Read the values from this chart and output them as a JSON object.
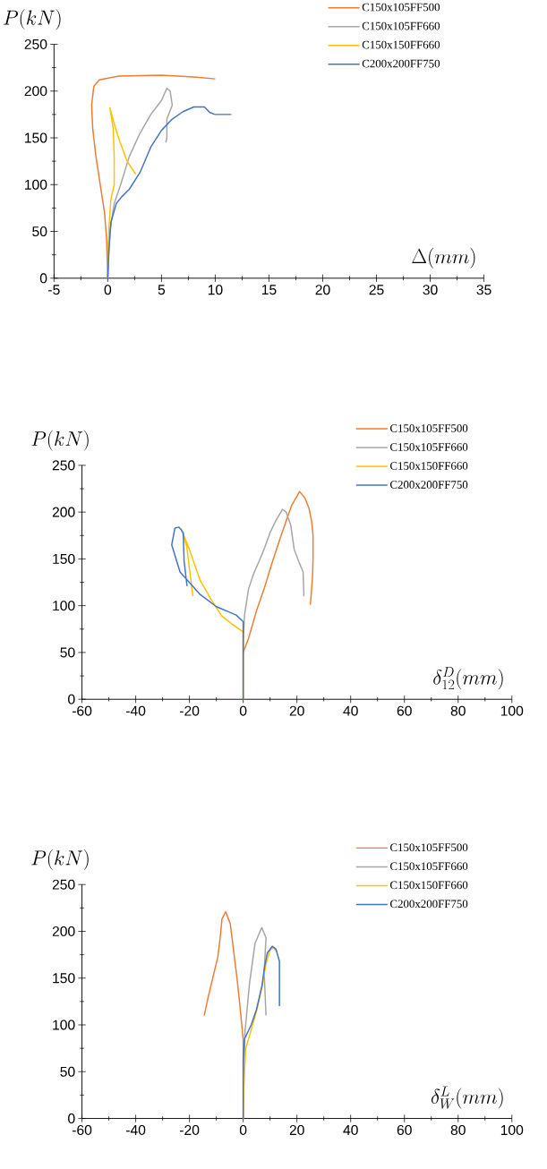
{
  "chart_data": [
    {
      "type": "line",
      "ylabel": "P(kN)",
      "xlabel": "\\Delta(mm)",
      "legend": "top right",
      "xlim": [
        -5,
        35
      ],
      "ylim": [
        0,
        250
      ],
      "xticks": [
        -5,
        0,
        5,
        10,
        15,
        20,
        25,
        30,
        35
      ],
      "yticks": [
        0,
        50,
        100,
        150,
        200,
        250
      ],
      "series": [
        {
          "name": "C150x105FF500",
          "color": "#ed7d31",
          "x": [
            0,
            -0.1,
            -0.3,
            -0.7,
            -1.1,
            -1.4,
            -1.5,
            -1.3,
            -0.8,
            1,
            5,
            8,
            10
          ],
          "values": [
            0,
            40,
            70,
            100,
            130,
            160,
            185,
            205,
            212,
            216,
            217,
            215,
            213
          ]
        },
        {
          "name": "C150x105FF660",
          "color": "#a5a5a5",
          "x": [
            0,
            0.2,
            0.6,
            1.2,
            2,
            3,
            4,
            5,
            5.5,
            5.8,
            6,
            5.5,
            5.5,
            5.4
          ],
          "values": [
            0,
            50,
            80,
            100,
            130,
            155,
            175,
            190,
            203,
            200,
            185,
            170,
            150,
            145
          ]
        },
        {
          "name": "C150x150FF660",
          "color": "#ffc000",
          "x": [
            0,
            0.05,
            0.2,
            0.3,
            0.6,
            0.6,
            0.5,
            0.3,
            0.2,
            0.6,
            1,
            1.8,
            2.6
          ],
          "values": [
            0,
            40,
            70,
            85,
            100,
            130,
            160,
            175,
            182,
            165,
            150,
            125,
            111
          ]
        },
        {
          "name": "C200x200FF750",
          "color": "#4472c4",
          "x": [
            0,
            0.1,
            0.3,
            0.8,
            1.3,
            2,
            3,
            4,
            5,
            6,
            7,
            8,
            9,
            9.5,
            10,
            11.5
          ],
          "values": [
            0,
            30,
            60,
            80,
            87,
            95,
            113,
            140,
            158,
            170,
            178,
            183,
            183,
            177,
            175,
            175
          ]
        }
      ]
    },
    {
      "type": "line",
      "ylabel": "P(kN)",
      "xlabel": "\\delta^{D}_{12}(mm)",
      "legend": "top right",
      "xlim": [
        -60,
        100
      ],
      "ylim": [
        0,
        250
      ],
      "xticks": [
        -60,
        -40,
        -20,
        0,
        20,
        40,
        60,
        80,
        100
      ],
      "yticks": [
        0,
        50,
        100,
        150,
        200,
        250
      ],
      "series": [
        {
          "name": "C150x105FF500",
          "color": "#ed7d31",
          "x": [
            0,
            2,
            5,
            8,
            11,
            14,
            18,
            21,
            23,
            24.5,
            25.5,
            26,
            26,
            25.8,
            25
          ],
          "values": [
            50,
            65,
            95,
            120,
            148,
            174,
            207,
            222,
            215,
            204,
            190,
            175,
            150,
            130,
            101
          ]
        },
        {
          "name": "C150x105FF660",
          "color": "#a5a5a5",
          "x": [
            0,
            0,
            0.5,
            2,
            4,
            6,
            8,
            10,
            12,
            14.6,
            16,
            17.7,
            19,
            21,
            22.3,
            22.6
          ],
          "values": [
            0,
            60,
            90,
            118,
            135,
            148,
            162,
            178,
            190,
            203,
            200,
            186,
            160,
            145,
            136,
            110
          ]
        },
        {
          "name": "C150x150FF660",
          "color": "#ffc000",
          "x": [
            0,
            0,
            -4,
            -8,
            -12,
            -16,
            -20,
            -23,
            -21,
            -18.7
          ],
          "values": [
            0,
            72,
            80,
            89,
            107,
            127,
            160,
            182,
            163,
            110
          ]
        },
        {
          "name": "C200x200FF750",
          "color": "#4472c4",
          "x": [
            0,
            0,
            -2.6,
            -10,
            -16,
            -23.5,
            -26.6,
            -25.4,
            -23.9,
            -22.3,
            -22,
            -20.9
          ],
          "values": [
            0,
            83,
            90,
            99,
            112,
            136,
            165,
            183,
            184,
            178,
            148,
            121
          ]
        }
      ]
    },
    {
      "type": "line",
      "ylabel": "P(kN)",
      "xlabel": "\\delta^{L}_{W}(mm)",
      "legend": "top right",
      "xlim": [
        -60,
        100
      ],
      "ylim": [
        0,
        250
      ],
      "xticks": [
        -60,
        -40,
        -20,
        0,
        20,
        40,
        60,
        80,
        100
      ],
      "yticks": [
        0,
        50,
        100,
        150,
        200,
        250
      ],
      "series": [
        {
          "name": "C150x105FF500",
          "color": "#ed7d31",
          "x": [
            0,
            0,
            -1.2,
            -2.3,
            -3.3,
            -4.8,
            -6.5,
            -7.9,
            -8.5,
            -9.4,
            -11.4,
            -13,
            -14.5
          ],
          "values": [
            60,
            84,
            120,
            150,
            173,
            208,
            221,
            213,
            195,
            173,
            149,
            130,
            110
          ]
        },
        {
          "name": "C150x105FF660",
          "color": "#a5a5a5",
          "x": [
            0,
            0.6,
            2.3,
            4.4,
            6.9,
            8.5,
            7.8,
            8.5
          ],
          "values": [
            0,
            90,
            143,
            187,
            204,
            193,
            157,
            110
          ]
        },
        {
          "name": "C150x150FF660",
          "color": "#ffc000",
          "x": [
            0,
            0.3,
            1,
            3,
            5,
            7,
            8.5,
            10,
            11.3,
            12.5
          ],
          "values": [
            0,
            40,
            75,
            95,
            115,
            140,
            165,
            180,
            183,
            178
          ]
        },
        {
          "name": "C200x200FF750",
          "color": "#4472c4",
          "x": [
            0,
            0,
            0.5,
            3,
            5,
            7,
            8,
            9,
            10.8,
            12.2,
            13.5,
            13.5
          ],
          "values": [
            0,
            60,
            85,
            100,
            117,
            142,
            163,
            177,
            184,
            181,
            168,
            120
          ]
        }
      ]
    }
  ]
}
